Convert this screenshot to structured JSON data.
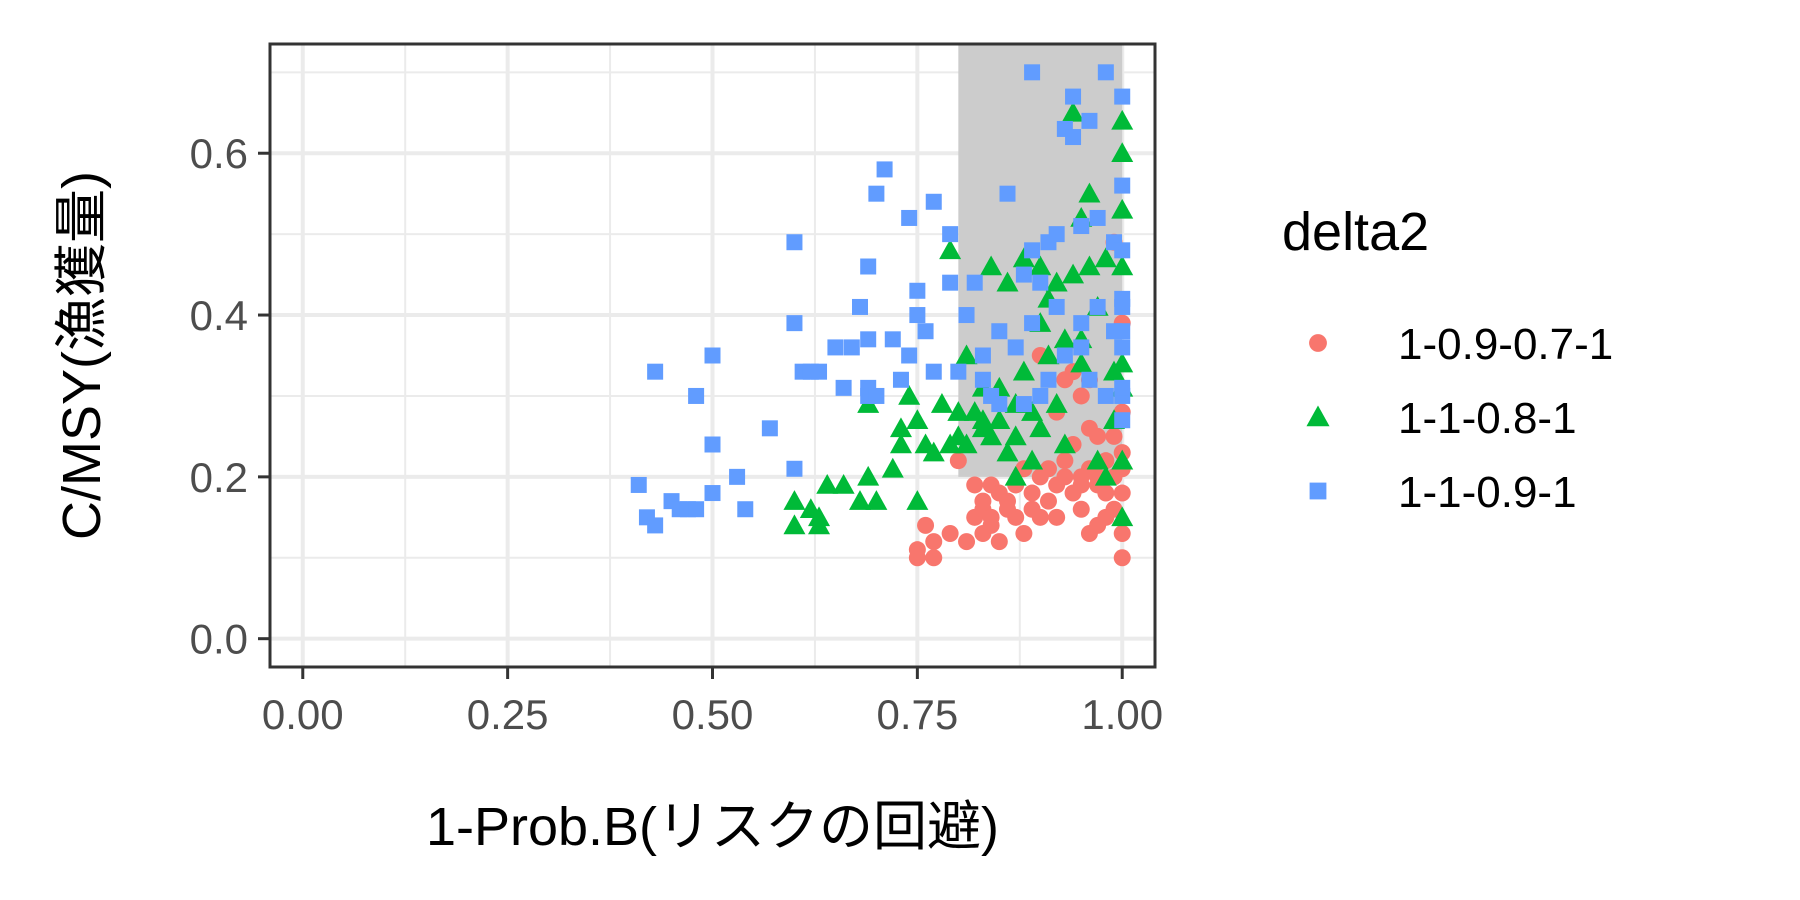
{
  "chart_data": {
    "type": "scatter",
    "xlabel": "1-Prob.B(リスクの回避)",
    "ylabel": "C/MSY(漁獲量)",
    "xlim": [
      -0.04,
      1.04
    ],
    "ylim": [
      -0.035,
      0.735
    ],
    "x_ticks": [
      0,
      0.25,
      0.5,
      0.75,
      1
    ],
    "x_tick_labels": [
      "0.00",
      "0.25",
      "0.50",
      "0.75",
      "1.00"
    ],
    "y_ticks": [
      0,
      0.2,
      0.4,
      0.6
    ],
    "y_tick_labels": [
      "0.0",
      "0.2",
      "0.4",
      "0.6"
    ],
    "grid": true,
    "shaded_region": {
      "x": [
        0.8,
        1.0
      ],
      "y": [
        0.2,
        0.735
      ],
      "color": "#cccccc"
    },
    "legend": {
      "title": "delta2",
      "placement": "right"
    },
    "series": [
      {
        "name": "1-0.9-0.7-1",
        "shape": "circle",
        "color": "#F8766D",
        "x": [
          0.75,
          0.75,
          0.76,
          0.77,
          0.77,
          0.79,
          0.8,
          0.81,
          0.82,
          0.82,
          0.83,
          0.83,
          0.83,
          0.84,
          0.84,
          0.85,
          0.85,
          0.86,
          0.87,
          0.87,
          0.88,
          0.88,
          0.89,
          0.89,
          0.9,
          0.9,
          0.9,
          0.91,
          0.91,
          0.92,
          0.92,
          0.93,
          0.93,
          0.94,
          0.94,
          0.95,
          0.95,
          0.95,
          0.96,
          0.96,
          0.96,
          0.97,
          0.97,
          0.97,
          0.98,
          0.98,
          0.98,
          0.99,
          0.99,
          0.99,
          1.0,
          1.0,
          1.0,
          1.0,
          1.0,
          1.0,
          1.0,
          0.92,
          0.94,
          0.96,
          0.93,
          0.97,
          0.99,
          0.95,
          0.86,
          0.84
        ],
        "y": [
          0.1,
          0.11,
          0.14,
          0.12,
          0.1,
          0.13,
          0.22,
          0.12,
          0.19,
          0.15,
          0.17,
          0.13,
          0.16,
          0.19,
          0.14,
          0.18,
          0.12,
          0.17,
          0.19,
          0.15,
          0.13,
          0.21,
          0.18,
          0.16,
          0.35,
          0.2,
          0.15,
          0.21,
          0.17,
          0.19,
          0.15,
          0.32,
          0.2,
          0.18,
          0.24,
          0.3,
          0.19,
          0.16,
          0.26,
          0.21,
          0.13,
          0.25,
          0.19,
          0.14,
          0.22,
          0.18,
          0.15,
          0.49,
          0.2,
          0.16,
          0.39,
          0.23,
          0.21,
          0.18,
          0.13,
          0.1,
          0.28,
          0.28,
          0.33,
          0.32,
          0.22,
          0.2,
          0.25,
          0.2,
          0.16,
          0.15
        ]
      },
      {
        "name": "1-1-0.8-1",
        "shape": "triangle",
        "color": "#00BA38",
        "x": [
          0.6,
          0.6,
          0.62,
          0.63,
          0.63,
          0.64,
          0.66,
          0.68,
          0.69,
          0.69,
          0.7,
          0.72,
          0.73,
          0.73,
          0.74,
          0.75,
          0.75,
          0.76,
          0.77,
          0.78,
          0.79,
          0.8,
          0.8,
          0.81,
          0.81,
          0.82,
          0.83,
          0.83,
          0.84,
          0.84,
          0.85,
          0.85,
          0.86,
          0.86,
          0.87,
          0.87,
          0.88,
          0.88,
          0.89,
          0.89,
          0.9,
          0.9,
          0.91,
          0.91,
          0.92,
          0.92,
          0.93,
          0.93,
          0.94,
          0.94,
          0.95,
          0.95,
          0.96,
          0.96,
          0.97,
          0.97,
          0.98,
          0.98,
          0.99,
          0.99,
          1.0,
          1.0,
          1.0,
          1.0,
          1.0,
          1.0,
          1.0,
          1.0,
          0.79,
          0.83,
          0.9,
          0.87,
          0.95
        ],
        "y": [
          0.14,
          0.17,
          0.16,
          0.14,
          0.15,
          0.19,
          0.19,
          0.17,
          0.2,
          0.29,
          0.17,
          0.21,
          0.24,
          0.26,
          0.3,
          0.27,
          0.17,
          0.24,
          0.23,
          0.29,
          0.48,
          0.28,
          0.25,
          0.35,
          0.24,
          0.28,
          0.31,
          0.27,
          0.25,
          0.46,
          0.27,
          0.31,
          0.44,
          0.23,
          0.29,
          0.25,
          0.47,
          0.33,
          0.28,
          0.22,
          0.46,
          0.26,
          0.42,
          0.35,
          0.29,
          0.44,
          0.24,
          0.37,
          0.65,
          0.45,
          0.52,
          0.34,
          0.55,
          0.46,
          0.22,
          0.41,
          0.2,
          0.47,
          0.27,
          0.33,
          0.6,
          0.64,
          0.53,
          0.46,
          0.34,
          0.31,
          0.22,
          0.15,
          0.24,
          0.26,
          0.39,
          0.2,
          0.37
        ]
      },
      {
        "name": "1-1-0.9-1",
        "shape": "square",
        "color": "#619CFF",
        "x": [
          0.41,
          0.42,
          0.43,
          0.43,
          0.45,
          0.46,
          0.47,
          0.48,
          0.48,
          0.5,
          0.5,
          0.5,
          0.53,
          0.54,
          0.57,
          0.6,
          0.6,
          0.6,
          0.61,
          0.62,
          0.63,
          0.65,
          0.66,
          0.67,
          0.68,
          0.69,
          0.69,
          0.69,
          0.69,
          0.7,
          0.7,
          0.71,
          0.72,
          0.73,
          0.74,
          0.74,
          0.75,
          0.75,
          0.76,
          0.77,
          0.77,
          0.79,
          0.79,
          0.8,
          0.81,
          0.82,
          0.83,
          0.83,
          0.84,
          0.85,
          0.85,
          0.86,
          0.87,
          0.88,
          0.88,
          0.89,
          0.89,
          0.9,
          0.9,
          0.91,
          0.91,
          0.92,
          0.92,
          0.93,
          0.93,
          0.94,
          0.94,
          0.95,
          0.95,
          0.96,
          0.96,
          0.97,
          0.97,
          0.98,
          0.98,
          0.99,
          0.99,
          1.0,
          1.0,
          1.0,
          1.0,
          1.0,
          1.0,
          1.0,
          1.0,
          1.0,
          1.0,
          0.89,
          0.95
        ],
        "y": [
          0.19,
          0.15,
          0.14,
          0.33,
          0.17,
          0.16,
          0.16,
          0.3,
          0.16,
          0.35,
          0.24,
          0.18,
          0.2,
          0.16,
          0.26,
          0.49,
          0.39,
          0.21,
          0.33,
          0.33,
          0.33,
          0.36,
          0.31,
          0.36,
          0.41,
          0.46,
          0.37,
          0.31,
          0.3,
          0.55,
          0.3,
          0.58,
          0.37,
          0.32,
          0.52,
          0.35,
          0.43,
          0.4,
          0.38,
          0.54,
          0.33,
          0.5,
          0.44,
          0.33,
          0.4,
          0.44,
          0.35,
          0.32,
          0.3,
          0.38,
          0.29,
          0.55,
          0.36,
          0.29,
          0.45,
          0.39,
          0.7,
          0.44,
          0.3,
          0.49,
          0.32,
          0.5,
          0.41,
          0.63,
          0.35,
          0.67,
          0.62,
          0.36,
          0.51,
          0.32,
          0.64,
          0.52,
          0.41,
          0.7,
          0.3,
          0.49,
          0.38,
          0.67,
          0.56,
          0.48,
          0.42,
          0.38,
          0.3,
          0.36,
          0.41,
          0.31,
          0.27,
          0.48,
          0.39
        ]
      }
    ]
  }
}
